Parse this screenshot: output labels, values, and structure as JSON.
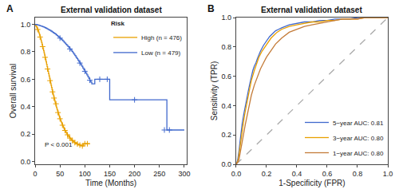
{
  "chart_data": [
    {
      "type": "step",
      "title": "External validation dataset",
      "panel_label": "A",
      "x_label": "Time (Months)",
      "y_label": "Overall survival",
      "xlim": [
        0,
        305
      ],
      "ylim": [
        -0.02,
        1.05
      ],
      "xticks": [
        0,
        50,
        100,
        150,
        200,
        250,
        300
      ],
      "yticks": [
        {
          "value": 0,
          "label": "0.0"
        },
        0.2,
        0.4,
        0.6,
        0.8,
        {
          "value": 1,
          "label": "1.0"
        }
      ],
      "grid": false,
      "legend": "upper right",
      "legend_title": "Risk",
      "annotations": [
        "P < 0.001"
      ],
      "series": [
        {
          "name": "High (n = 476)",
          "type": "step",
          "color": "#E8A000",
          "x": [
            0,
            1,
            2,
            3,
            4,
            5,
            6,
            7,
            8,
            9,
            10,
            11,
            12,
            13,
            14,
            15,
            16,
            17,
            18,
            19,
            20,
            21,
            22,
            23,
            24,
            25,
            26,
            27,
            28,
            29,
            30,
            31,
            32,
            33,
            34,
            35,
            36,
            37,
            38,
            39,
            40,
            41,
            42,
            43,
            44,
            45,
            46,
            47,
            48,
            49,
            50,
            51,
            52,
            53,
            54,
            55,
            56,
            57,
            58,
            59,
            60,
            61,
            62,
            63,
            64,
            65,
            66,
            67,
            68,
            69,
            70,
            71,
            72,
            73,
            74,
            75,
            76,
            77,
            78,
            79,
            80,
            81,
            82,
            83,
            84,
            85,
            86,
            87,
            88,
            89,
            90,
            91,
            92,
            93,
            94,
            95,
            96,
            97,
            98,
            99,
            100,
            101,
            102,
            103,
            104,
            105,
            106,
            107,
            110
          ],
          "values": [
            1.0,
            0.993,
            0.986,
            0.979,
            0.971,
            0.963,
            0.954,
            0.944,
            0.933,
            0.921,
            0.908,
            0.895,
            0.881,
            0.867,
            0.853,
            0.838,
            0.823,
            0.808,
            0.792,
            0.776,
            0.76,
            0.743,
            0.726,
            0.709,
            0.692,
            0.675,
            0.658,
            0.641,
            0.624,
            0.607,
            0.59,
            0.573,
            0.556,
            0.54,
            0.524,
            0.508,
            0.493,
            0.478,
            0.463,
            0.449,
            0.434,
            0.421,
            0.407,
            0.394,
            0.381,
            0.369,
            0.357,
            0.345,
            0.334,
            0.323,
            0.312,
            0.302,
            0.292,
            0.283,
            0.274,
            0.265,
            0.257,
            0.249,
            0.241,
            0.234,
            0.227,
            0.22,
            0.213,
            0.207,
            0.201,
            0.195,
            0.19,
            0.185,
            0.18,
            0.175,
            0.171,
            0.167,
            0.163,
            0.159,
            0.156,
            0.153,
            0.15,
            0.147,
            0.144,
            0.141,
            0.138,
            0.136,
            0.134,
            0.132,
            0.13,
            0.128,
            0.126,
            0.124,
            0.123,
            0.121,
            0.12,
            0.118,
            0.117,
            0.116,
            0.115,
            0.114,
            0.113,
            0.13,
            0.13,
            0.13,
            0.13,
            0.13,
            0.13,
            0.13,
            0.13,
            0.13,
            0.13,
            0.13,
            0.13
          ]
        },
        {
          "name": "Low (n = 479)",
          "type": "step",
          "color": "#4169CD",
          "x": [
            0,
            2,
            4,
            6,
            8,
            10,
            12,
            14,
            16,
            18,
            20,
            22,
            24,
            26,
            28,
            30,
            32,
            34,
            36,
            38,
            40,
            42,
            44,
            46,
            48,
            50,
            52,
            54,
            56,
            58,
            60,
            62,
            64,
            66,
            68,
            70,
            72,
            74,
            76,
            78,
            80,
            82,
            84,
            86,
            88,
            90,
            92,
            94,
            96,
            98,
            100,
            102,
            104,
            106,
            108,
            110,
            112,
            114,
            120,
            130,
            140,
            145,
            148,
            150,
            200,
            260,
            265,
            270,
            300
          ],
          "values": [
            1.0,
            0.999,
            0.997,
            0.995,
            0.993,
            0.99,
            0.988,
            0.985,
            0.982,
            0.979,
            0.976,
            0.972,
            0.968,
            0.964,
            0.96,
            0.956,
            0.951,
            0.946,
            0.941,
            0.936,
            0.931,
            0.925,
            0.919,
            0.913,
            0.907,
            0.9,
            0.893,
            0.886,
            0.879,
            0.871,
            0.863,
            0.855,
            0.847,
            0.839,
            0.83,
            0.821,
            0.812,
            0.803,
            0.793,
            0.783,
            0.773,
            0.762,
            0.751,
            0.74,
            0.729,
            0.718,
            0.706,
            0.694,
            0.682,
            0.67,
            0.658,
            0.645,
            0.632,
            0.619,
            0.606,
            0.593,
            0.58,
            0.567,
            0.6,
            0.6,
            0.6,
            0.6,
            0.6,
            0.45,
            0.45,
            0.45,
            0.23,
            0.23,
            0.23
          ]
        },
        {
          "type": "scatter",
          "marker": "plus",
          "color": "#E8A000",
          "x": [
            5,
            10,
            15,
            20,
            25,
            30,
            35,
            38,
            42,
            46,
            50,
            55,
            60,
            65,
            70,
            75,
            80,
            85,
            90,
            95,
            100,
            105
          ],
          "values": [
            0.963,
            0.908,
            0.838,
            0.76,
            0.675,
            0.59,
            0.508,
            0.463,
            0.421,
            0.357,
            0.312,
            0.265,
            0.227,
            0.195,
            0.171,
            0.153,
            0.138,
            0.128,
            0.12,
            0.114,
            0.13,
            0.13
          ]
        },
        {
          "type": "scatter",
          "marker": "plus",
          "color": "#4169CD",
          "x": [
            50,
            70,
            90,
            100,
            110,
            130,
            145,
            200,
            260,
            270
          ],
          "values": [
            0.9,
            0.821,
            0.718,
            0.658,
            0.593,
            0.6,
            0.6,
            0.45,
            0.23,
            0.23
          ]
        }
      ]
    },
    {
      "type": "line",
      "title": "External validation dataset",
      "panel_label": "B",
      "x_label": "1-Specificity (FPR)",
      "y_label": "Sensitivity (TPR)",
      "xlim": [
        0,
        1
      ],
      "ylim": [
        0,
        1
      ],
      "xticks": [
        {
          "value": 0,
          "label": "0.0"
        },
        0.2,
        0.4,
        0.6,
        0.8,
        {
          "value": 1,
          "label": "1.0"
        }
      ],
      "yticks": [
        {
          "value": 0,
          "label": "0.0"
        },
        0.2,
        0.4,
        0.6,
        0.8,
        {
          "value": 1,
          "label": "1.0"
        }
      ],
      "grid": false,
      "legend": "lower right",
      "series": [
        {
          "type": "line",
          "line_style": "dashed",
          "color": "#aaaaaa",
          "x": [
            0,
            1
          ],
          "values": [
            0,
            1
          ]
        },
        {
          "name": "5−year AUC: 0.81",
          "type": "line",
          "color": "#4169CD",
          "x": [
            0.0,
            0.005,
            0.01,
            0.015,
            0.02,
            0.025,
            0.03,
            0.04,
            0.05,
            0.06,
            0.07,
            0.08,
            0.09,
            0.1,
            0.11,
            0.12,
            0.13,
            0.14,
            0.15,
            0.16,
            0.18,
            0.2,
            0.22,
            0.24,
            0.26,
            0.28,
            0.3,
            0.35,
            0.4,
            0.45,
            0.5,
            0.55,
            0.6,
            0.65,
            0.7,
            0.75,
            0.8,
            0.85,
            0.9,
            0.95,
            1.0
          ],
          "values": [
            0.0,
            0.01,
            0.03,
            0.06,
            0.1,
            0.15,
            0.2,
            0.28,
            0.34,
            0.4,
            0.45,
            0.5,
            0.55,
            0.6,
            0.64,
            0.67,
            0.69,
            0.72,
            0.75,
            0.77,
            0.81,
            0.84,
            0.87,
            0.89,
            0.91,
            0.92,
            0.93,
            0.95,
            0.96,
            0.97,
            0.97,
            0.98,
            0.98,
            0.99,
            0.99,
            0.99,
            1.0,
            1.0,
            1.0,
            1.0,
            1.0
          ]
        },
        {
          "name": "3−year AUC: 0.80",
          "type": "line",
          "color": "#E8A000",
          "x": [
            0.0,
            0.005,
            0.01,
            0.015,
            0.02,
            0.025,
            0.03,
            0.04,
            0.05,
            0.06,
            0.07,
            0.08,
            0.09,
            0.1,
            0.11,
            0.12,
            0.13,
            0.14,
            0.15,
            0.17,
            0.19,
            0.21,
            0.23,
            0.25,
            0.27,
            0.3,
            0.35,
            0.4,
            0.45,
            0.5,
            0.55,
            0.6,
            0.65,
            0.7,
            0.75,
            0.8,
            0.85,
            0.9,
            0.95,
            1.0
          ],
          "values": [
            0.0,
            0.01,
            0.02,
            0.04,
            0.08,
            0.12,
            0.17,
            0.24,
            0.3,
            0.36,
            0.42,
            0.47,
            0.52,
            0.57,
            0.61,
            0.64,
            0.67,
            0.7,
            0.73,
            0.77,
            0.8,
            0.83,
            0.86,
            0.88,
            0.9,
            0.92,
            0.94,
            0.95,
            0.96,
            0.97,
            0.97,
            0.98,
            0.98,
            0.99,
            0.99,
            0.99,
            1.0,
            1.0,
            1.0,
            1.0
          ]
        },
        {
          "name": "1−year AUC: 0.80",
          "type": "line",
          "color": "#C47C3A",
          "x": [
            0.0,
            0.005,
            0.01,
            0.015,
            0.02,
            0.025,
            0.03,
            0.04,
            0.05,
            0.06,
            0.07,
            0.08,
            0.09,
            0.1,
            0.12,
            0.14,
            0.16,
            0.18,
            0.2,
            0.22,
            0.24,
            0.26,
            0.28,
            0.3,
            0.35,
            0.4,
            0.45,
            0.5,
            0.55,
            0.6,
            0.65,
            0.7,
            0.75,
            0.8,
            0.85,
            0.9,
            0.95,
            1.0
          ],
          "values": [
            0.0,
            0.005,
            0.01,
            0.02,
            0.04,
            0.07,
            0.11,
            0.17,
            0.22,
            0.27,
            0.32,
            0.37,
            0.42,
            0.47,
            0.54,
            0.6,
            0.65,
            0.69,
            0.73,
            0.76,
            0.79,
            0.82,
            0.84,
            0.86,
            0.9,
            0.92,
            0.94,
            0.95,
            0.96,
            0.97,
            0.98,
            0.99,
            0.99,
            0.99,
            1.0,
            1.0,
            1.0,
            1.0
          ]
        }
      ]
    }
  ]
}
